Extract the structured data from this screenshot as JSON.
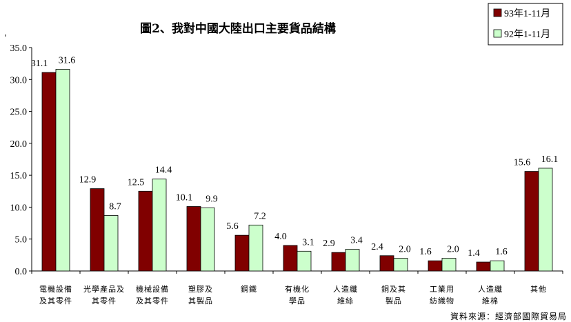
{
  "chart_data": {
    "type": "bar",
    "title": "圖2、我對中國大陸出口主要貨品結構",
    "categories": [
      [
        "電機設備",
        "及其零件"
      ],
      [
        "光學產品及",
        "其零件"
      ],
      [
        "機械設備",
        "及其零件"
      ],
      [
        "塑膠及",
        "其製品"
      ],
      [
        "鋼鐵"
      ],
      [
        "有機化",
        "學品"
      ],
      [
        "人造纖",
        "維絲"
      ],
      [
        "銅及其",
        "製品"
      ],
      [
        "工業用",
        "紡織物"
      ],
      [
        "人造纖",
        "維棉"
      ],
      [
        "其他"
      ]
    ],
    "series": [
      {
        "name": "93年1-11月",
        "color": "#800000",
        "values": [
          31.1,
          12.9,
          12.5,
          10.1,
          5.6,
          4.0,
          2.9,
          2.4,
          1.6,
          1.4,
          15.6
        ],
        "labels": [
          "31.1",
          "12.9",
          "12.5",
          "10.1",
          "5.6",
          "4.0",
          "2.9",
          "2.4",
          "1.6",
          "1.4",
          "15.6"
        ]
      },
      {
        "name": "92年1-11月",
        "color": "#ccffcc",
        "values": [
          31.6,
          8.7,
          14.4,
          9.9,
          7.2,
          3.1,
          3.4,
          2.0,
          2.0,
          1.6,
          16.1
        ],
        "labels": [
          "31.6",
          "8.7",
          "14.4",
          "9.9",
          "7.2",
          "3.1",
          "3.4",
          "2.0",
          "2.0",
          "1.6",
          "16.1"
        ]
      }
    ],
    "ylim": [
      0,
      35
    ],
    "yticks": [
      "0.0",
      "5.0",
      "10.0",
      "15.0",
      "20.0",
      "25.0",
      "30.0",
      "35.0"
    ],
    "legend_position": "top-right",
    "grid": false,
    "source": "資料來源：經濟部國際貿易局"
  }
}
